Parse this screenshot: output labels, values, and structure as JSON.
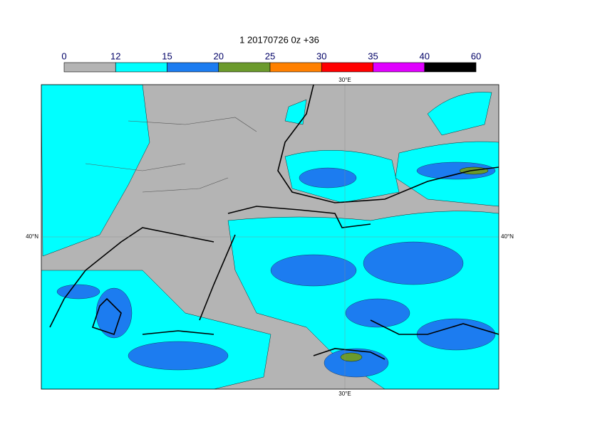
{
  "title": "1 20170726 0z +36",
  "colorbar": {
    "boundaries": [
      0,
      12,
      15,
      20,
      25,
      30,
      35,
      40,
      60
    ],
    "colors": [
      "#b4b4b4",
      "#00ffff",
      "#1c7cf0",
      "#6b9a2c",
      "#ff8000",
      "#ff0000",
      "#e000ff",
      "#000000"
    ]
  },
  "map": {
    "lon_label": "30°E",
    "lat_label": "40°N"
  }
}
